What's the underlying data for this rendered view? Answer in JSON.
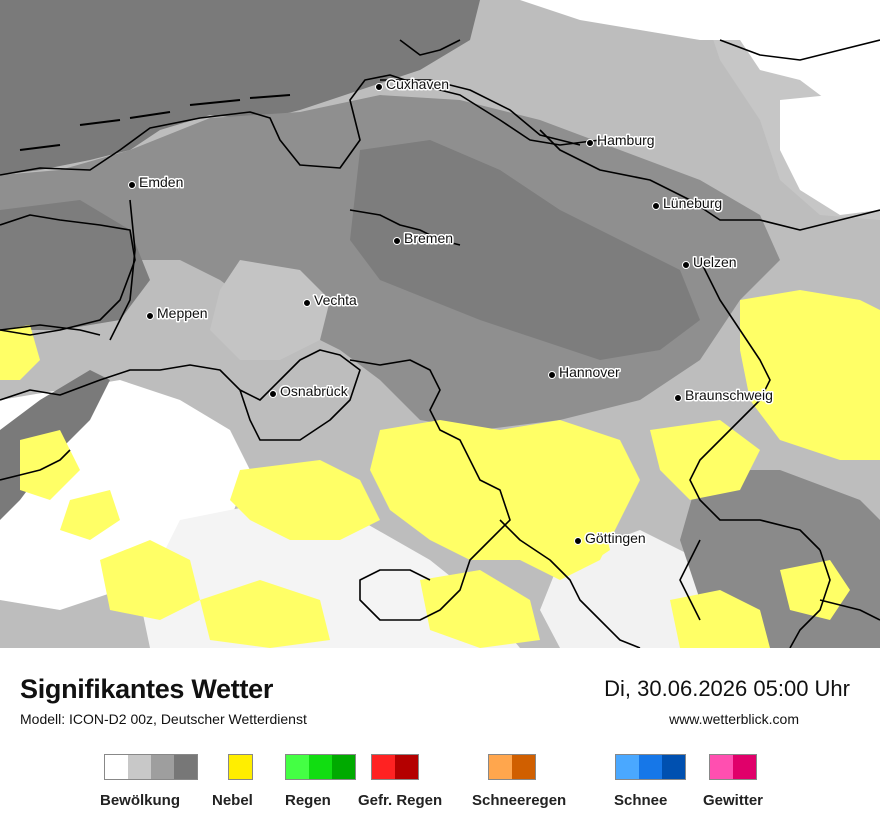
{
  "map": {
    "cities": [
      {
        "name": "Cuxhaven"
      },
      {
        "name": "Hamburg"
      },
      {
        "name": "Emden"
      },
      {
        "name": "Lüneburg"
      },
      {
        "name": "Bremen"
      },
      {
        "name": "Uelzen"
      },
      {
        "name": "Vechta"
      },
      {
        "name": "Meppen"
      },
      {
        "name": "Hannover"
      },
      {
        "name": "Osnabrück"
      },
      {
        "name": "Braunschweig"
      },
      {
        "name": "Göttingen"
      }
    ]
  },
  "footer": {
    "title": "Signifikantes Wetter",
    "model": "Modell: ICON-D2 00z, Deutscher Wetterdienst",
    "datetime": "Di, 30.06.2026 05:00 Uhr",
    "site": "www.wetterblick.com"
  },
  "legend": [
    {
      "label": "Bewölkung",
      "colors": [
        "#ffffff",
        "#c8c8c8",
        "#9e9e9e",
        "#777777"
      ]
    },
    {
      "label": "Nebel",
      "colors": [
        "#ffee00"
      ]
    },
    {
      "label": "Regen",
      "colors": [
        "#44ff44",
        "#11dd11",
        "#00aa00"
      ]
    },
    {
      "label": "Gefr. Regen",
      "colors": [
        "#ff2222",
        "#b40000"
      ]
    },
    {
      "label": "Schneeregen",
      "colors": [
        "#ffa64d",
        "#d05f00"
      ]
    },
    {
      "label": "Schnee",
      "colors": [
        "#4aa8ff",
        "#1677e8",
        "#0050b0"
      ]
    },
    {
      "label": "Gewitter",
      "colors": [
        "#ff4fb0",
        "#e0006a"
      ]
    }
  ],
  "colors": {
    "cloud_light": "#c8c8c8",
    "cloud_mid": "#9e9e9e",
    "cloud_dark": "#777777",
    "fog": "#ffff66",
    "border": "#000000"
  }
}
